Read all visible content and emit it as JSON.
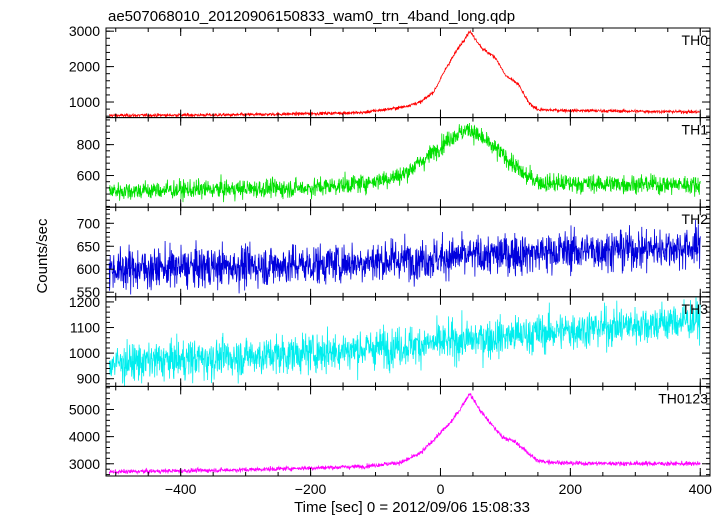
{
  "chart_data": {
    "type": "line",
    "title": "ae507068010_20120906150833_wam0_trn_4band_long.qdp",
    "xlabel": "Time [sec] 0 = 2012/09/06 15:08:33",
    "ylabel": "Counts/sec",
    "xlim": [
      -515,
      415
    ],
    "x_ticks": [
      -400,
      -200,
      0,
      200,
      400
    ],
    "x_tick_labels": [
      "−400",
      "−200",
      "0",
      "200",
      "400"
    ],
    "panels": [
      {
        "name": "TH0",
        "color": "#ff0000",
        "ylim": [
          560,
          3090
        ],
        "y_ticks": [
          1000,
          2000,
          3000
        ],
        "y_tick_labels": [
          "1000",
          "2000",
          "3000"
        ],
        "profile": [
          [
            -510,
            620
          ],
          [
            -300,
            640
          ],
          [
            -120,
            700
          ],
          [
            -60,
            850
          ],
          [
            -30,
            1000
          ],
          [
            -10,
            1300
          ],
          [
            10,
            2000
          ],
          [
            25,
            2450
          ],
          [
            45,
            3000
          ],
          [
            65,
            2500
          ],
          [
            85,
            2250
          ],
          [
            100,
            1750
          ],
          [
            120,
            1500
          ],
          [
            135,
            1000
          ],
          [
            150,
            780
          ],
          [
            200,
            760
          ],
          [
            400,
            720
          ]
        ],
        "noise": 22
      },
      {
        "name": "TH1",
        "color": "#00e000",
        "ylim": [
          395,
          975
        ],
        "y_ticks": [
          600,
          800
        ],
        "y_tick_labels": [
          "600",
          "800"
        ],
        "profile": [
          [
            -510,
            500
          ],
          [
            -200,
            520
          ],
          [
            -120,
            550
          ],
          [
            -60,
            600
          ],
          [
            -20,
            720
          ],
          [
            20,
            860
          ],
          [
            45,
            900
          ],
          [
            70,
            820
          ],
          [
            100,
            720
          ],
          [
            130,
            600
          ],
          [
            160,
            550
          ],
          [
            400,
            540
          ]
        ],
        "noise": 30
      },
      {
        "name": "TH2",
        "color": "#0000dd",
        "ylim": [
          540,
          735
        ],
        "y_ticks": [
          550,
          600,
          650,
          700
        ],
        "y_tick_labels": [
          "550",
          "600",
          "650",
          "700"
        ],
        "profile": [
          [
            -510,
            600
          ],
          [
            -200,
            610
          ],
          [
            0,
            625
          ],
          [
            200,
            640
          ],
          [
            400,
            648
          ]
        ],
        "noise": 22
      },
      {
        "name": "TH3",
        "color": "#00eeee",
        "ylim": [
          870,
          1220
        ],
        "y_ticks": [
          900,
          1000,
          1100,
          1200
        ],
        "y_tick_labels": [
          "900",
          "1000",
          "1100",
          "1200"
        ],
        "profile": [
          [
            -510,
            960
          ],
          [
            -200,
            1000
          ],
          [
            0,
            1040
          ],
          [
            200,
            1090
          ],
          [
            400,
            1130
          ]
        ],
        "noise": 38
      },
      {
        "name": "TH0123",
        "color": "#ff00ff",
        "ylim": [
          2550,
          5850
        ],
        "y_ticks": [
          3000,
          4000,
          5000
        ],
        "y_tick_labels": [
          "3000",
          "4000",
          "5000"
        ],
        "profile": [
          [
            -510,
            2700
          ],
          [
            -300,
            2780
          ],
          [
            -120,
            2900
          ],
          [
            -60,
            3050
          ],
          [
            -30,
            3400
          ],
          [
            -10,
            3900
          ],
          [
            15,
            4500
          ],
          [
            30,
            5000
          ],
          [
            45,
            5600
          ],
          [
            60,
            5000
          ],
          [
            80,
            4400
          ],
          [
            95,
            4000
          ],
          [
            115,
            3800
          ],
          [
            135,
            3400
          ],
          [
            150,
            3100
          ],
          [
            200,
            3020
          ],
          [
            400,
            3000
          ]
        ],
        "noise": 40
      }
    ]
  }
}
